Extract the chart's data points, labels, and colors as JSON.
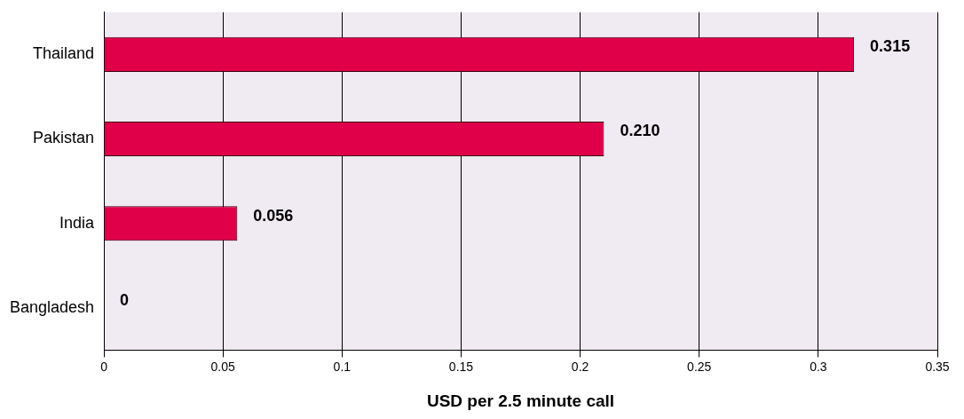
{
  "chart_data": {
    "type": "bar",
    "orientation": "horizontal",
    "xlabel": "USD per 2.5 minute call",
    "categories": [
      "Thailand",
      "Pakistan",
      "India",
      "Bangladesh"
    ],
    "values": [
      0.315,
      0.21,
      0.056,
      0
    ],
    "value_labels": [
      "0.315",
      "0.210",
      "0.056",
      "0"
    ],
    "color": "#e0004a",
    "xlim": [
      0,
      0.35
    ],
    "xticks": [
      0,
      0.05,
      0.1,
      0.15,
      0.2,
      0.25,
      0.3,
      0.35
    ],
    "grid": "x",
    "legend": false
  }
}
